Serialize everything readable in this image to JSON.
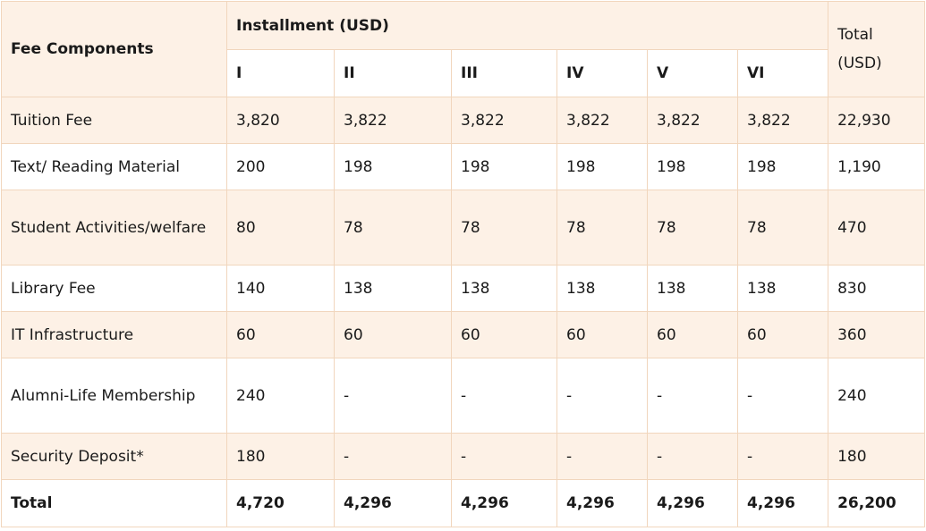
{
  "table": {
    "header": {
      "component": "Fee Components",
      "installment": "Installment (USD)",
      "total": "Total (USD)",
      "installments": [
        "I",
        "II",
        "III",
        "IV",
        "V",
        "VI"
      ]
    },
    "rows": [
      {
        "label": "Tuition Fee",
        "values": [
          "3,820",
          "3,822",
          "3,822",
          "3,822",
          "3,822",
          "3,822"
        ],
        "total": "22,930"
      },
      {
        "label": "Text/ Reading Material",
        "values": [
          "200",
          "198",
          "198",
          "198",
          "198",
          "198"
        ],
        "total": "1,190"
      },
      {
        "label": "Student Activities/welfare",
        "values": [
          "80",
          "78",
          "78",
          "78",
          "78",
          "78"
        ],
        "total": "470"
      },
      {
        "label": "Library Fee",
        "values": [
          "140",
          "138",
          "138",
          "138",
          "138",
          "138"
        ],
        "total": "830"
      },
      {
        "label": "IT Infrastructure",
        "values": [
          "60",
          "60",
          "60",
          "60",
          "60",
          "60"
        ],
        "total": "360"
      },
      {
        "label": "Alumni-Life Membership",
        "values": [
          "240",
          "-",
          "-",
          "-",
          "-",
          "-"
        ],
        "total": "240"
      },
      {
        "label": "Security Deposit*",
        "values": [
          "180",
          "-",
          "-",
          "-",
          "-",
          "-"
        ],
        "total": "180"
      }
    ],
    "footer": {
      "label": "Total",
      "values": [
        "4,720",
        "4,296",
        "4,296",
        "4,296",
        "4,296",
        "4,296"
      ],
      "total": "26,200"
    }
  }
}
